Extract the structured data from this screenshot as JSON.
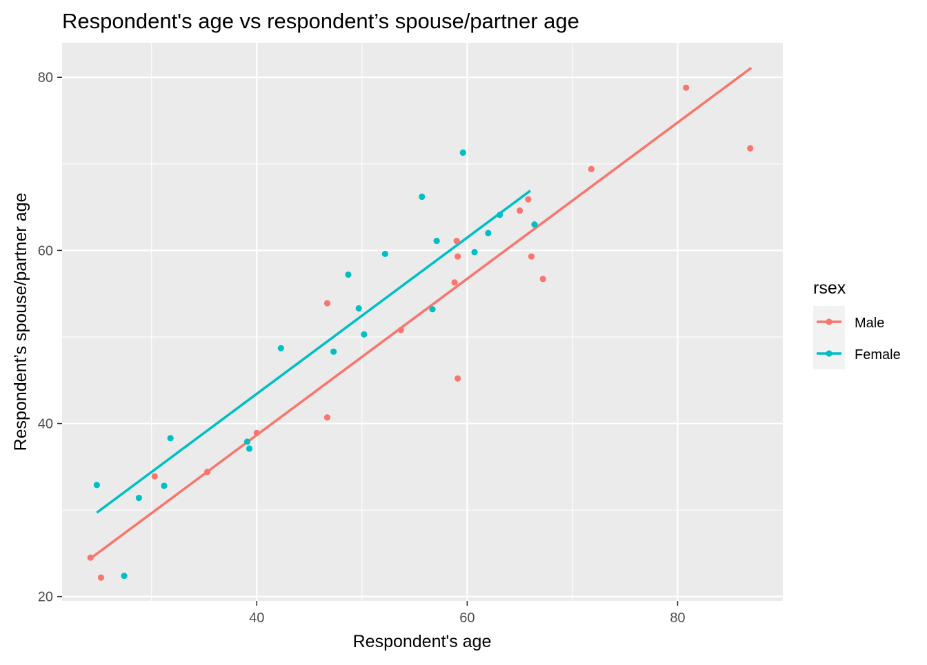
{
  "chart_data": {
    "type": "scatter",
    "title": "Respondent's age vs respondent’s spouse/partner age",
    "xlabel": "Respondent's age",
    "ylabel": "Respondent’s spouse/partner age",
    "xlim": [
      21.5,
      90
    ],
    "ylim": [
      19.5,
      84
    ],
    "x_ticks": [
      40,
      60,
      80
    ],
    "y_ticks": [
      20,
      40,
      60,
      80
    ],
    "grid": true,
    "legend_title": "rsex",
    "legend_position": "right",
    "series": [
      {
        "name": "Male",
        "color": "#F8766D",
        "points": [
          {
            "x": 24.2,
            "y": 24.5
          },
          {
            "x": 25.2,
            "y": 22.2
          },
          {
            "x": 30.3,
            "y": 33.9
          },
          {
            "x": 35.3,
            "y": 34.4
          },
          {
            "x": 40.0,
            "y": 38.9
          },
          {
            "x": 46.7,
            "y": 53.9
          },
          {
            "x": 46.7,
            "y": 40.7
          },
          {
            "x": 53.7,
            "y": 50.8
          },
          {
            "x": 58.8,
            "y": 56.3
          },
          {
            "x": 59.0,
            "y": 61.1
          },
          {
            "x": 59.1,
            "y": 59.3
          },
          {
            "x": 59.1,
            "y": 45.2
          },
          {
            "x": 65.0,
            "y": 64.6
          },
          {
            "x": 65.8,
            "y": 65.9
          },
          {
            "x": 66.1,
            "y": 59.3
          },
          {
            "x": 67.2,
            "y": 56.7
          },
          {
            "x": 71.8,
            "y": 69.4
          },
          {
            "x": 80.8,
            "y": 78.8
          },
          {
            "x": 86.9,
            "y": 71.8
          }
        ],
        "fit": {
          "x": [
            24.2,
            87.0
          ],
          "y": [
            24.4,
            81.1
          ]
        }
      },
      {
        "name": "Female",
        "color": "#00BFC4",
        "points": [
          {
            "x": 24.8,
            "y": 32.9
          },
          {
            "x": 27.4,
            "y": 22.4
          },
          {
            "x": 28.8,
            "y": 31.4
          },
          {
            "x": 31.2,
            "y": 32.8
          },
          {
            "x": 31.8,
            "y": 38.3
          },
          {
            "x": 39.1,
            "y": 37.9
          },
          {
            "x": 39.3,
            "y": 37.1
          },
          {
            "x": 42.3,
            "y": 48.7
          },
          {
            "x": 47.3,
            "y": 48.3
          },
          {
            "x": 48.7,
            "y": 57.2
          },
          {
            "x": 49.7,
            "y": 53.3
          },
          {
            "x": 50.2,
            "y": 50.3
          },
          {
            "x": 52.2,
            "y": 59.6
          },
          {
            "x": 55.7,
            "y": 66.2
          },
          {
            "x": 56.7,
            "y": 53.2
          },
          {
            "x": 57.1,
            "y": 61.1
          },
          {
            "x": 59.6,
            "y": 71.3
          },
          {
            "x": 60.7,
            "y": 59.8
          },
          {
            "x": 62.0,
            "y": 62.0
          },
          {
            "x": 63.1,
            "y": 64.1
          },
          {
            "x": 66.4,
            "y": 63.0
          }
        ],
        "fit": {
          "x": [
            24.8,
            66.0
          ],
          "y": [
            29.7,
            66.9
          ]
        }
      }
    ]
  }
}
